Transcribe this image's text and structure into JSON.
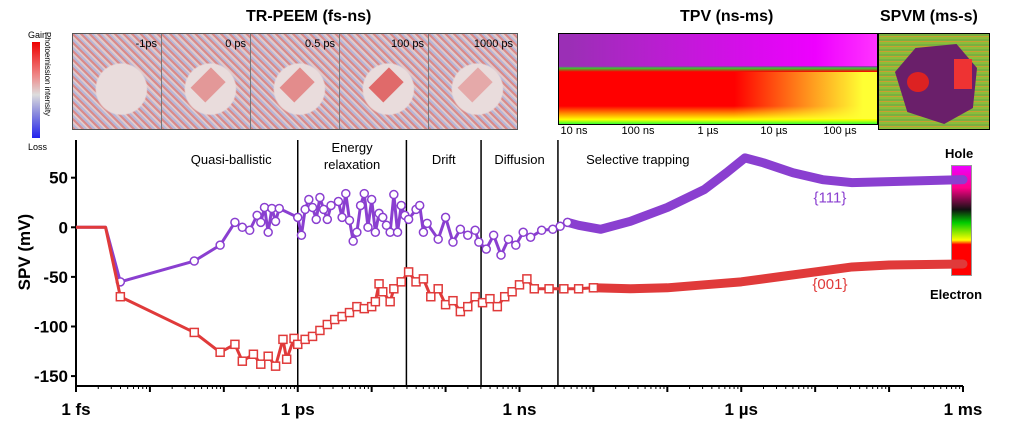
{
  "panels": {
    "peem_title": "TR-PEEM (fs-ns)",
    "tpv_title": "TPV (ns-ms)",
    "spvm_title": "SPVM (ms-s)",
    "peem_frames": [
      "-1ps",
      "0 ps",
      "0.5 ps",
      "100 ps",
      "1000 ps"
    ],
    "peem_frame_intensity": [
      0,
      0.6,
      0.7,
      1.0,
      0.45
    ],
    "peem_colorbar": {
      "top": "Gain",
      "bottom": "Loss",
      "label": "Photoemission intensity"
    },
    "tpv_ticks": [
      "10 ns",
      "100 ns",
      "1 µs",
      "10 µs",
      "100 µs"
    ],
    "charge_colorbar": {
      "top": "Hole",
      "bottom": "Electron"
    }
  },
  "chart_data": {
    "type": "scatter",
    "title": "",
    "xlabel": "",
    "ylabel": "SPV (mV)",
    "xscale": "log10 seconds",
    "xlim": [
      -15,
      -3
    ],
    "ylim": [
      -160,
      88
    ],
    "xticks": [
      {
        "v": -15,
        "label": "1 fs"
      },
      {
        "v": -12,
        "label": "1 ps"
      },
      {
        "v": -9,
        "label": "1 ns"
      },
      {
        "v": -6,
        "label": "1 µs"
      },
      {
        "v": -3,
        "label": "1 ms"
      }
    ],
    "yticks": [
      {
        "v": 50,
        "label": "50"
      },
      {
        "v": 0,
        "label": "0"
      },
      {
        "v": -50,
        "label": "-50"
      },
      {
        "v": -100,
        "label": "-100"
      },
      {
        "v": -150,
        "label": "-150"
      }
    ],
    "regions": [
      {
        "label": [
          "Quasi-ballistic"
        ],
        "from": -15,
        "to": -12,
        "center": -12.9
      },
      {
        "label": [
          "Energy",
          "relaxation"
        ],
        "from": -12,
        "to": -10.53
      },
      {
        "label": [
          "Drift"
        ],
        "from": -10.53,
        "to": -9.52
      },
      {
        "label": [
          "Diffusion"
        ],
        "from": -9.52,
        "to": -8.48
      },
      {
        "label": [
          "Selective  trapping"
        ],
        "from": -8.48,
        "to": -3,
        "center": -7.4
      }
    ],
    "series": [
      {
        "name": "{111}",
        "color": "#8a3fd0",
        "marker": "circle",
        "label_at": [
          -4.8,
          25
        ],
        "line_start": [
          [
            -15,
            0
          ],
          [
            -14.6,
            0
          ],
          [
            -14.4,
            -55
          ]
        ],
        "points": [
          [
            -14.4,
            -55
          ],
          [
            -13.4,
            -34
          ],
          [
            -13.05,
            -18
          ],
          [
            -12.85,
            5
          ],
          [
            -12.75,
            0
          ],
          [
            -12.65,
            -3
          ],
          [
            -12.55,
            12
          ],
          [
            -12.5,
            5
          ],
          [
            -12.45,
            20
          ],
          [
            -12.4,
            -5
          ],
          [
            -12.35,
            19
          ],
          [
            -12.3,
            6
          ],
          [
            -12.25,
            19
          ],
          [
            -12.0,
            10
          ],
          [
            -11.95,
            -8
          ],
          [
            -11.9,
            18
          ],
          [
            -11.85,
            28
          ],
          [
            -11.8,
            20
          ],
          [
            -11.75,
            8
          ],
          [
            -11.7,
            30
          ],
          [
            -11.65,
            18
          ],
          [
            -11.6,
            8
          ],
          [
            -11.55,
            22
          ],
          [
            -11.45,
            26
          ],
          [
            -11.4,
            10
          ],
          [
            -11.35,
            34
          ],
          [
            -11.3,
            7
          ],
          [
            -11.25,
            -14
          ],
          [
            -11.2,
            -5
          ],
          [
            -11.15,
            22
          ],
          [
            -11.1,
            34
          ],
          [
            -11.05,
            0
          ],
          [
            -11.0,
            28
          ],
          [
            -10.95,
            -5
          ],
          [
            -10.9,
            14
          ],
          [
            -10.85,
            10
          ],
          [
            -10.8,
            2
          ],
          [
            -10.75,
            -5
          ],
          [
            -10.7,
            33
          ],
          [
            -10.65,
            -5
          ],
          [
            -10.6,
            22
          ],
          [
            -10.55,
            12
          ],
          [
            -10.5,
            8
          ],
          [
            -10.4,
            18
          ],
          [
            -10.35,
            22
          ],
          [
            -10.3,
            -5
          ],
          [
            -10.25,
            4
          ],
          [
            -10.1,
            -12
          ],
          [
            -10.0,
            10
          ],
          [
            -9.9,
            -15
          ],
          [
            -9.8,
            -2
          ],
          [
            -9.7,
            -8
          ],
          [
            -9.6,
            -3
          ],
          [
            -9.55,
            -15
          ],
          [
            -9.45,
            -22
          ],
          [
            -9.35,
            -8
          ],
          [
            -9.25,
            -28
          ],
          [
            -9.15,
            -12
          ],
          [
            -9.05,
            -18
          ],
          [
            -8.95,
            -5
          ],
          [
            -8.85,
            -10
          ],
          [
            -8.7,
            -3
          ],
          [
            -8.55,
            -2
          ],
          [
            -8.45,
            1
          ],
          [
            -8.35,
            5
          ]
        ],
        "smooth": [
          [
            -8.35,
            5
          ],
          [
            -8.2,
            2
          ],
          [
            -7.9,
            -2
          ],
          [
            -7.5,
            6
          ],
          [
            -7.0,
            20
          ],
          [
            -6.5,
            38
          ],
          [
            -6.2,
            55
          ],
          [
            -5.95,
            70
          ],
          [
            -5.7,
            65
          ],
          [
            -5.3,
            55
          ],
          [
            -4.9,
            48
          ],
          [
            -4.5,
            45
          ],
          [
            -4.0,
            46
          ],
          [
            -3.0,
            48
          ]
        ]
      },
      {
        "name": "{001}",
        "color": "#e03a3a",
        "marker": "square",
        "label_at": [
          -4.8,
          -62
        ],
        "line_start": [
          [
            -15,
            0
          ],
          [
            -14.6,
            0
          ],
          [
            -14.4,
            -70
          ]
        ],
        "points": [
          [
            -14.4,
            -70
          ],
          [
            -13.4,
            -106
          ],
          [
            -13.05,
            -126
          ],
          [
            -12.85,
            -118
          ],
          [
            -12.75,
            -135
          ],
          [
            -12.6,
            -128
          ],
          [
            -12.5,
            -138
          ],
          [
            -12.4,
            -130
          ],
          [
            -12.3,
            -140
          ],
          [
            -12.2,
            -113
          ],
          [
            -12.15,
            -133
          ],
          [
            -12.05,
            -112
          ],
          [
            -12.0,
            -118
          ],
          [
            -11.9,
            -113
          ],
          [
            -11.8,
            -110
          ],
          [
            -11.7,
            -104
          ],
          [
            -11.6,
            -98
          ],
          [
            -11.5,
            -93
          ],
          [
            -11.4,
            -90
          ],
          [
            -11.3,
            -86
          ],
          [
            -11.2,
            -80
          ],
          [
            -11.1,
            -82
          ],
          [
            -11.0,
            -80
          ],
          [
            -10.95,
            -75
          ],
          [
            -10.9,
            -57
          ],
          [
            -10.85,
            -65
          ],
          [
            -10.75,
            -75
          ],
          [
            -10.7,
            -62
          ],
          [
            -10.6,
            -55
          ],
          [
            -10.5,
            -45
          ],
          [
            -10.4,
            -55
          ],
          [
            -10.3,
            -52
          ],
          [
            -10.2,
            -70
          ],
          [
            -10.1,
            -62
          ],
          [
            -10.0,
            -78
          ],
          [
            -9.9,
            -74
          ],
          [
            -9.8,
            -85
          ],
          [
            -9.7,
            -80
          ],
          [
            -9.6,
            -70
          ],
          [
            -9.5,
            -76
          ],
          [
            -9.4,
            -72
          ],
          [
            -9.3,
            -80
          ],
          [
            -9.2,
            -70
          ],
          [
            -9.1,
            -65
          ],
          [
            -9.0,
            -58
          ],
          [
            -8.9,
            -52
          ],
          [
            -8.8,
            -62
          ],
          [
            -8.6,
            -62
          ],
          [
            -8.4,
            -62
          ],
          [
            -8.2,
            -62
          ],
          [
            -8.0,
            -61
          ]
        ],
        "smooth": [
          [
            -8.0,
            -61
          ],
          [
            -7.5,
            -62
          ],
          [
            -7.0,
            -61
          ],
          [
            -6.5,
            -58
          ],
          [
            -6.0,
            -55
          ],
          [
            -5.5,
            -50
          ],
          [
            -5.0,
            -45
          ],
          [
            -4.5,
            -40
          ],
          [
            -4.0,
            -38
          ],
          [
            -3.0,
            -37
          ]
        ]
      }
    ]
  }
}
